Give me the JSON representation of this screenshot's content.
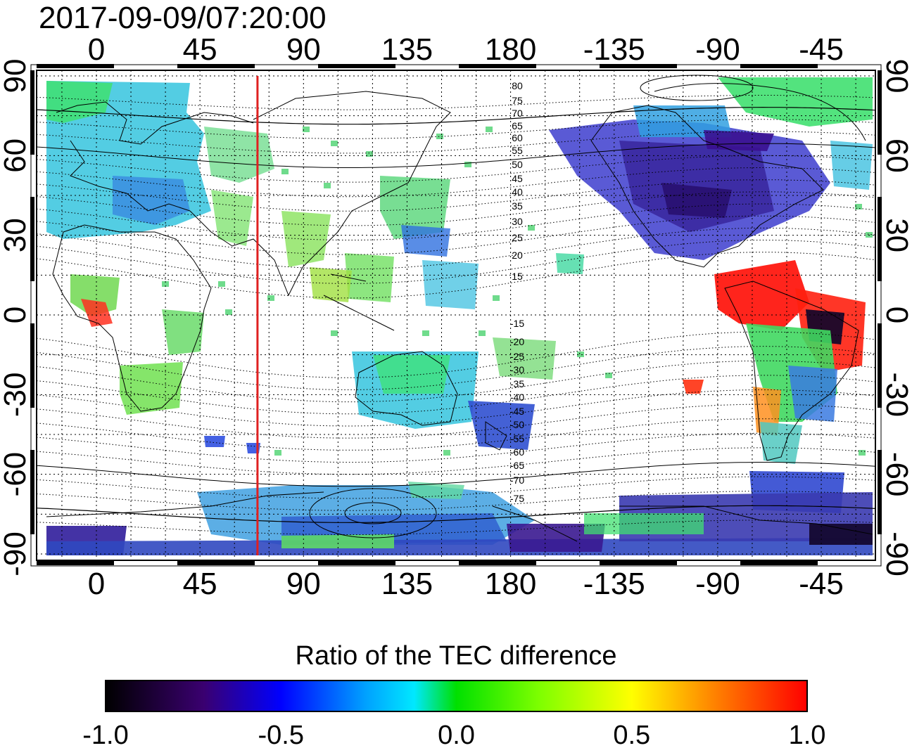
{
  "title": "2017-09-09/07:20:00",
  "map": {
    "x_ticks": [
      "0",
      "45",
      "90",
      "135",
      "180",
      "-135",
      "-90",
      "-45"
    ],
    "y_ticks": [
      "90",
      "60",
      "30",
      "0",
      "-30",
      "-60",
      "-90"
    ],
    "meridian_marker_longitude": 70,
    "marker_color": "#e02020",
    "magnetic_latitude_labels_north": [
      "80",
      "75",
      "70",
      "65",
      "60",
      "55",
      "50",
      "45",
      "40",
      "35",
      "30",
      "25",
      "20",
      "15"
    ],
    "magnetic_latitude_labels_south": [
      "-15",
      "-20",
      "-25",
      "-30",
      "-35",
      "-40",
      "-45",
      "-50",
      "-55",
      "-60",
      "-65",
      "-70",
      "-75"
    ]
  },
  "colorbar": {
    "title": "Ratio of the TEC difference",
    "ticks": [
      "-1.0",
      "-0.5",
      "0.0",
      "0.5",
      "1.0"
    ],
    "range": [
      -1.0,
      1.0
    ],
    "colors": [
      "#000000",
      "#3a0070",
      "#0000ff",
      "#00e0ff",
      "#00e000",
      "#ffff00",
      "#ff8000",
      "#ff0000"
    ]
  }
}
